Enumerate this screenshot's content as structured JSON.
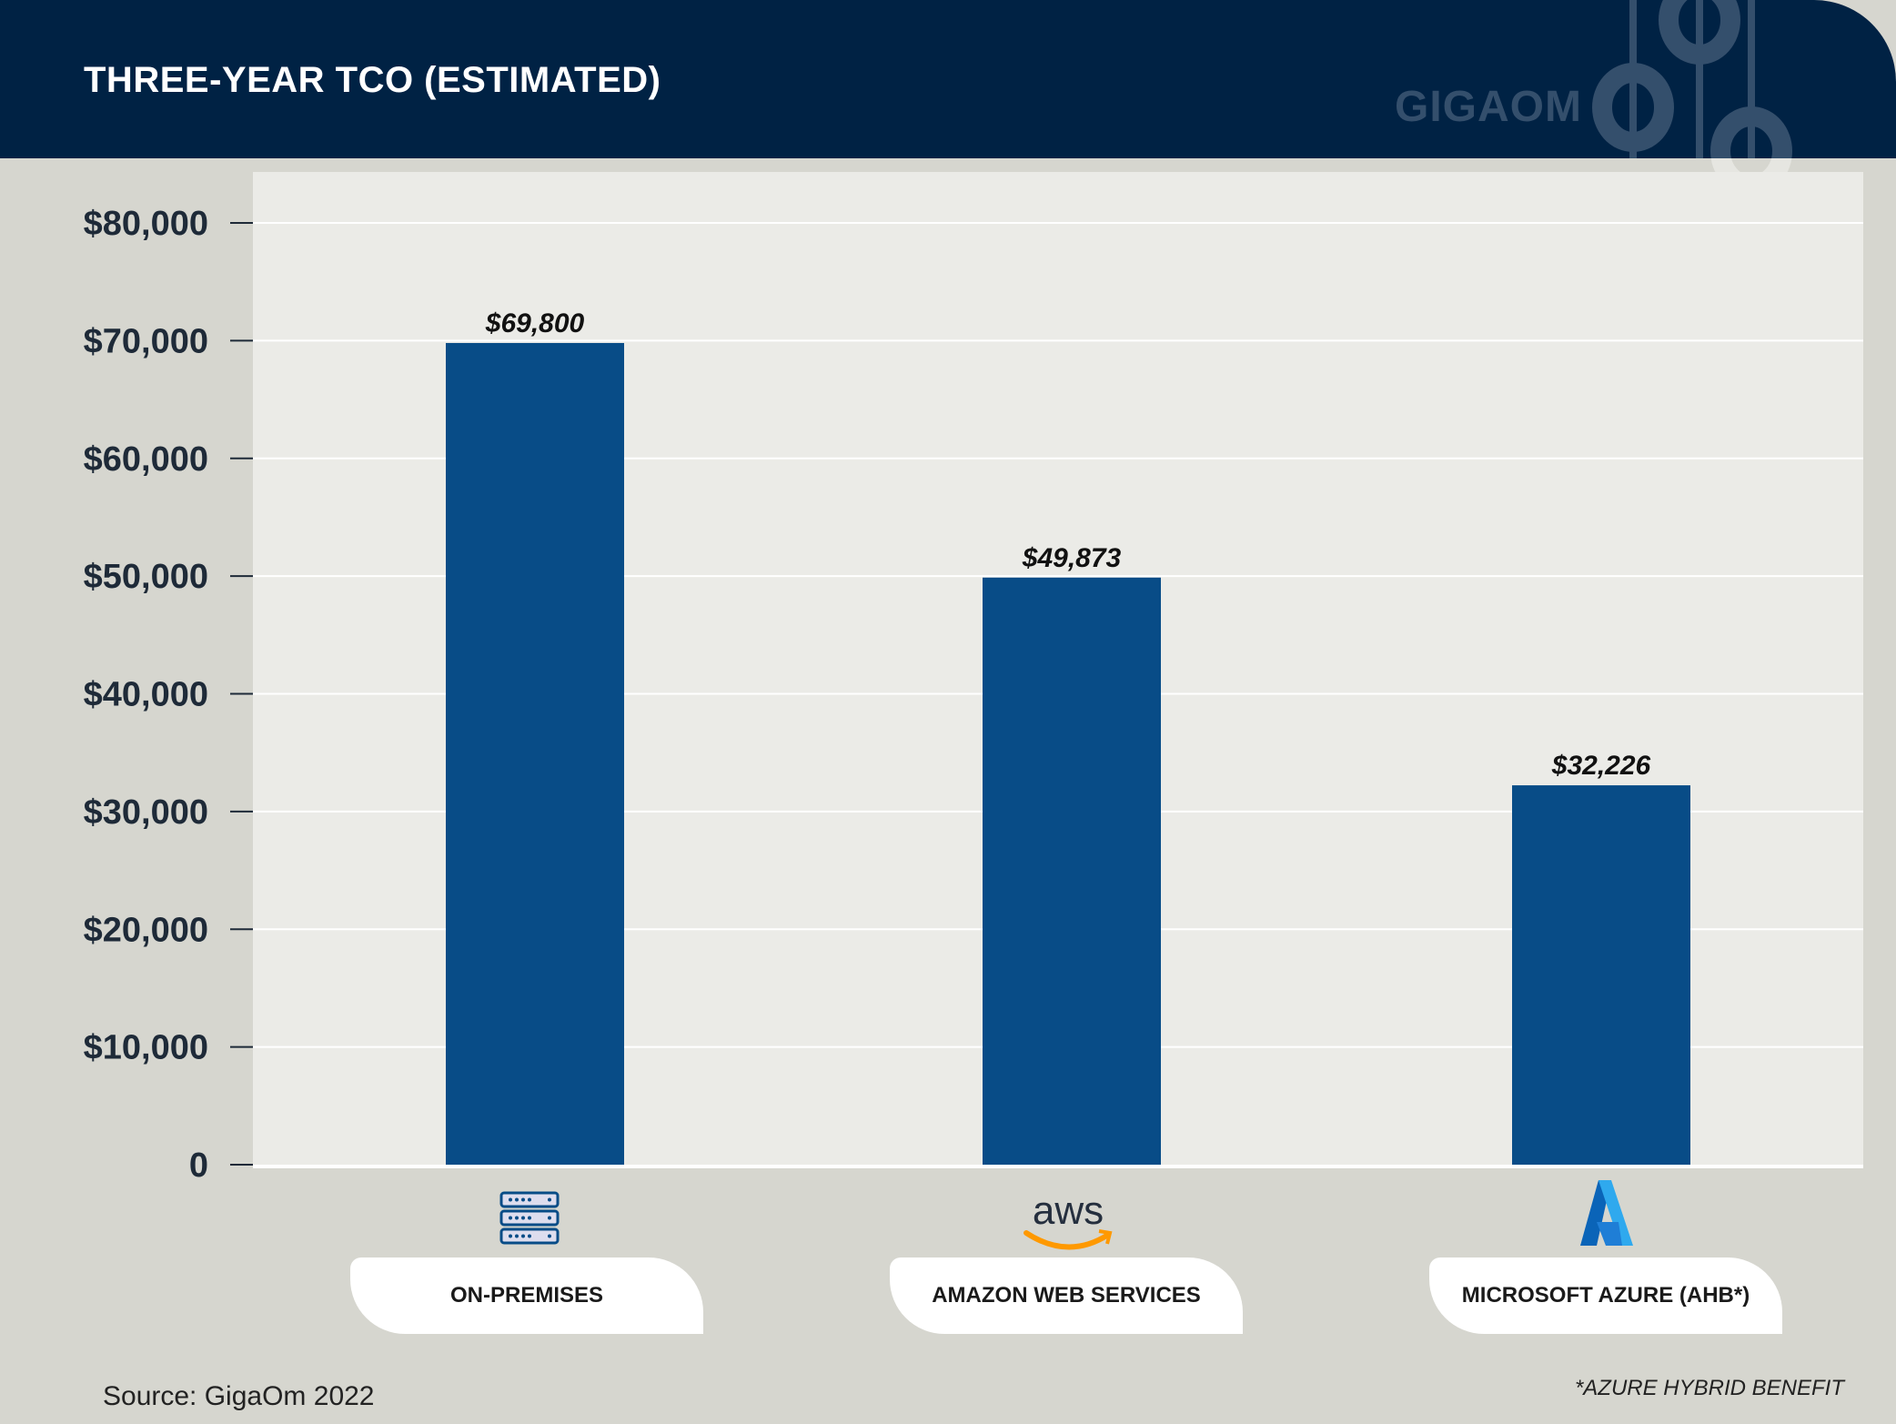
{
  "header": {
    "title": "THREE-YEAR TCO (ESTIMATED)",
    "logo": "GIGAOM"
  },
  "chart_data": {
    "type": "bar",
    "title": "THREE-YEAR TCO (ESTIMATED)",
    "categories": [
      "ON-PREMISES",
      "AMAZON WEB SERVICES",
      "MICROSOFT AZURE (AHB*)"
    ],
    "values": [
      69800,
      49873,
      32226
    ],
    "value_labels": [
      "$69,800",
      "$49,873",
      "$32,226"
    ],
    "yticks": [
      0,
      10000,
      20000,
      30000,
      40000,
      50000,
      60000,
      70000,
      80000
    ],
    "ytick_labels": [
      "0",
      "$10,000",
      "$20,000",
      "$30,000",
      "$40,000",
      "$50,000",
      "$60,000",
      "$70,000",
      "$80,000"
    ],
    "ylim": [
      0,
      80000
    ],
    "grid": true,
    "bar_color": "#084c87",
    "category_icons": [
      "server-rack-icon",
      "aws-logo-icon",
      "azure-logo-icon"
    ]
  },
  "footer": {
    "source": "Source: GigaOm 2022",
    "footnote": "*AZURE HYBRID BENEFIT"
  }
}
